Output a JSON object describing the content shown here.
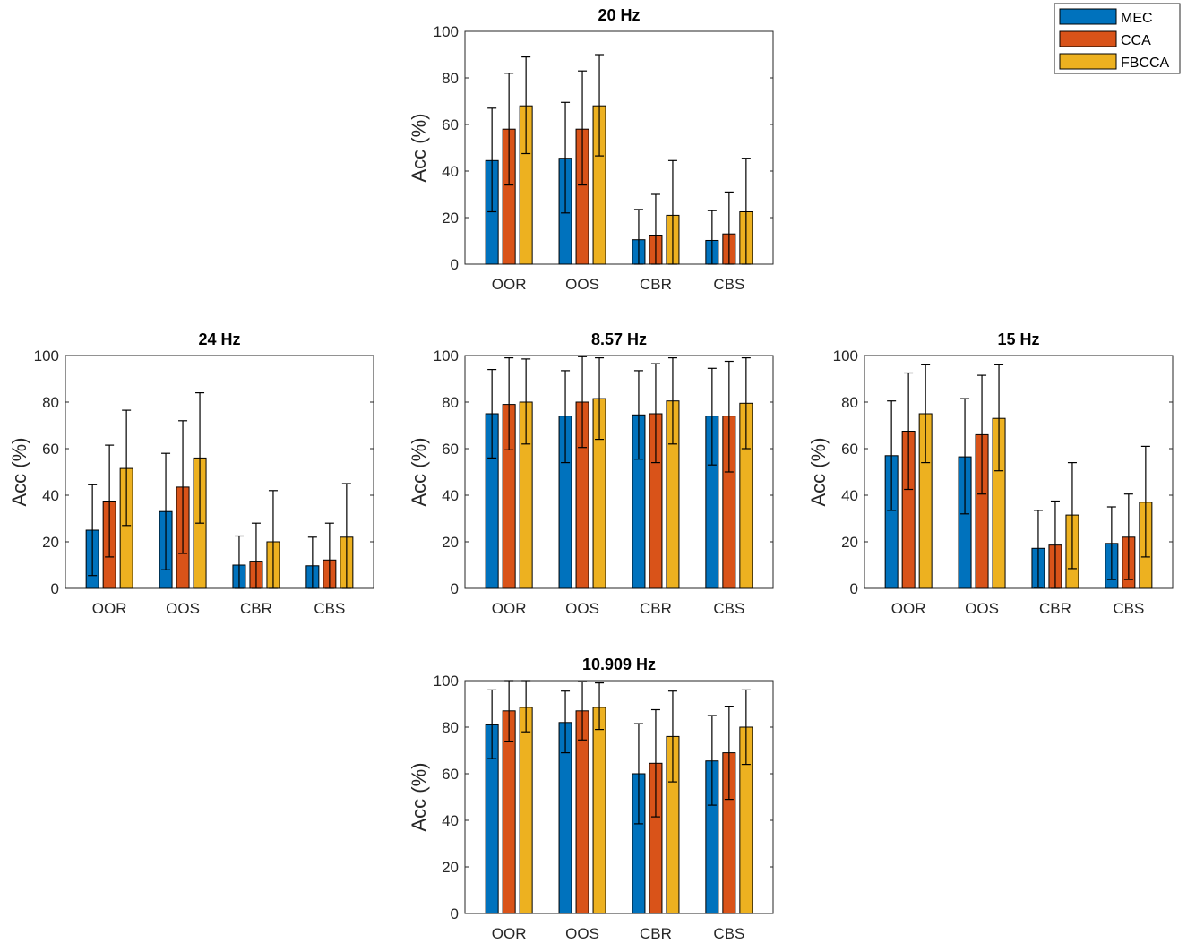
{
  "chart_data": [
    {
      "type": "bar",
      "title": "20 Hz",
      "xlabel": "",
      "ylabel": "Acc (%)",
      "ylim": [
        0,
        100
      ],
      "yticks": [
        0,
        20,
        40,
        60,
        80,
        100
      ],
      "categories": [
        "OOR",
        "OOS",
        "CBR",
        "CBS"
      ],
      "series": [
        {
          "name": "MEC",
          "values": [
            44.5,
            45.5,
            10.5,
            10.2
          ],
          "lower": [
            22.5,
            22,
            0,
            0
          ],
          "upper": [
            67,
            69.5,
            23.5,
            23
          ]
        },
        {
          "name": "CCA",
          "values": [
            58,
            58,
            12.5,
            13
          ],
          "lower": [
            34,
            34,
            0,
            0
          ],
          "upper": [
            82,
            83,
            30,
            31
          ]
        },
        {
          "name": "FBCCA",
          "values": [
            68,
            68,
            21,
            22.5
          ],
          "lower": [
            47.5,
            46.5,
            0,
            0
          ],
          "upper": [
            89,
            90,
            44.5,
            45.5
          ]
        }
      ]
    },
    {
      "type": "bar",
      "title": "24 Hz",
      "xlabel": "",
      "ylabel": "Acc (%)",
      "ylim": [
        0,
        100
      ],
      "yticks": [
        0,
        20,
        40,
        60,
        80,
        100
      ],
      "categories": [
        "OOR",
        "OOS",
        "CBR",
        "CBS"
      ],
      "series": [
        {
          "name": "MEC",
          "values": [
            25,
            33,
            10,
            9.7
          ],
          "lower": [
            5.5,
            8,
            0,
            0
          ],
          "upper": [
            44.5,
            58,
            22.5,
            22
          ]
        },
        {
          "name": "CCA",
          "values": [
            37.5,
            43.5,
            11.7,
            12.2
          ],
          "lower": [
            13.5,
            15,
            0,
            0
          ],
          "upper": [
            61.5,
            72,
            28,
            28
          ]
        },
        {
          "name": "FBCCA",
          "values": [
            51.5,
            56,
            20,
            22
          ],
          "lower": [
            27,
            28,
            0,
            0
          ],
          "upper": [
            76.5,
            84,
            42,
            45
          ]
        }
      ]
    },
    {
      "type": "bar",
      "title": "8.57 Hz",
      "xlabel": "",
      "ylabel": "Acc (%)",
      "ylim": [
        0,
        100
      ],
      "yticks": [
        0,
        20,
        40,
        60,
        80,
        100
      ],
      "categories": [
        "OOR",
        "OOS",
        "CBR",
        "CBS"
      ],
      "series": [
        {
          "name": "MEC",
          "values": [
            75,
            74,
            74.5,
            74
          ],
          "lower": [
            56,
            54,
            55.5,
            53
          ],
          "upper": [
            94,
            93.5,
            93.5,
            94.5
          ]
        },
        {
          "name": "CCA",
          "values": [
            79,
            80,
            75,
            74
          ],
          "lower": [
            59.5,
            60.5,
            54,
            50
          ],
          "upper": [
            99,
            99.5,
            96.5,
            97.5
          ]
        },
        {
          "name": "FBCCA",
          "values": [
            80,
            81.5,
            80.5,
            79.5
          ],
          "lower": [
            62,
            64,
            62,
            60
          ],
          "upper": [
            98.5,
            99,
            99,
            99
          ]
        }
      ]
    },
    {
      "type": "bar",
      "title": "15 Hz",
      "xlabel": "",
      "ylabel": "Acc (%)",
      "ylim": [
        0,
        100
      ],
      "yticks": [
        0,
        20,
        40,
        60,
        80,
        100
      ],
      "categories": [
        "OOR",
        "OOS",
        "CBR",
        "CBS"
      ],
      "series": [
        {
          "name": "MEC",
          "values": [
            57,
            56.5,
            17.2,
            19.3
          ],
          "lower": [
            33.5,
            32,
            0.5,
            3.8
          ],
          "upper": [
            80.5,
            81.5,
            33.5,
            35
          ]
        },
        {
          "name": "CCA",
          "values": [
            67.5,
            66,
            18.6,
            22
          ],
          "lower": [
            42.5,
            40.5,
            0,
            3.8
          ],
          "upper": [
            92.5,
            91.5,
            37.5,
            40.5
          ]
        },
        {
          "name": "FBCCA",
          "values": [
            75,
            73,
            31.5,
            37
          ],
          "lower": [
            54,
            50.5,
            8.5,
            13.5
          ],
          "upper": [
            96,
            96,
            54,
            61
          ]
        }
      ]
    },
    {
      "type": "bar",
      "title": "10.909 Hz",
      "xlabel": "",
      "ylabel": "Acc (%)",
      "ylim": [
        0,
        100
      ],
      "yticks": [
        0,
        20,
        40,
        60,
        80,
        100
      ],
      "categories": [
        "OOR",
        "OOS",
        "CBR",
        "CBS"
      ],
      "series": [
        {
          "name": "MEC",
          "values": [
            81,
            82,
            60,
            65.5
          ],
          "lower": [
            66.5,
            69,
            38.5,
            46.5
          ],
          "upper": [
            96,
            95.5,
            81.5,
            85
          ]
        },
        {
          "name": "CCA",
          "values": [
            87,
            87,
            64.5,
            69
          ],
          "lower": [
            74,
            74.5,
            41.5,
            49
          ],
          "upper": [
            100,
            99.5,
            87.5,
            89
          ]
        },
        {
          "name": "FBCCA",
          "values": [
            88.5,
            88.5,
            76,
            80
          ],
          "lower": [
            78,
            79,
            56.5,
            64
          ],
          "upper": [
            100,
            99,
            95.5,
            96
          ]
        }
      ]
    }
  ],
  "legend": {
    "placement": "top-right",
    "items": [
      {
        "label": "MEC",
        "color": "#0072BD"
      },
      {
        "label": "CCA",
        "color": "#D95319"
      },
      {
        "label": "FBCCA",
        "color": "#EDB120"
      }
    ]
  }
}
